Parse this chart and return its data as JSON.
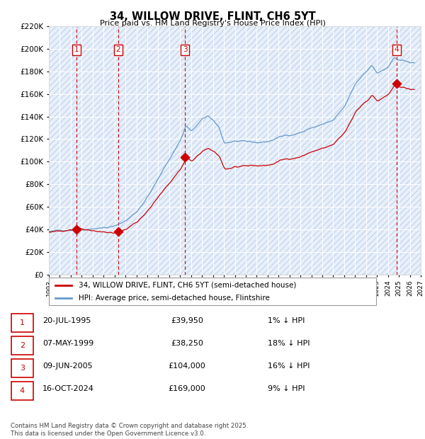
{
  "title": "34, WILLOW DRIVE, FLINT, CH6 5YT",
  "subtitle": "Price paid vs. HM Land Registry's House Price Index (HPI)",
  "legend_label_red": "34, WILLOW DRIVE, FLINT, CH6 5YT (semi-detached house)",
  "legend_label_blue": "HPI: Average price, semi-detached house, Flintshire",
  "footer": "Contains HM Land Registry data © Crown copyright and database right 2025.\nThis data is licensed under the Open Government Licence v3.0.",
  "sales": [
    {
      "label": "1",
      "date": "20-JUL-1995",
      "price": 39950,
      "year": 1995.55,
      "hpi_pct": "1% ↓ HPI"
    },
    {
      "label": "2",
      "date": "07-MAY-1999",
      "price": 38250,
      "year": 1999.35,
      "hpi_pct": "18% ↓ HPI"
    },
    {
      "label": "3",
      "date": "09-JUN-2005",
      "price": 104000,
      "year": 2005.44,
      "hpi_pct": "16% ↓ HPI"
    },
    {
      "label": "4",
      "date": "16-OCT-2024",
      "price": 169000,
      "year": 2024.79,
      "hpi_pct": "9% ↓ HPI"
    }
  ],
  "ylim": [
    0,
    220000
  ],
  "xlim": [
    1993.0,
    2027.0
  ],
  "yticks": [
    0,
    20000,
    40000,
    60000,
    80000,
    100000,
    120000,
    140000,
    160000,
    180000,
    200000,
    220000
  ],
  "color_red": "#cc0000",
  "color_blue": "#6699cc",
  "color_bg_chart": "#e8f0fb",
  "color_dashed": "#cc0000"
}
